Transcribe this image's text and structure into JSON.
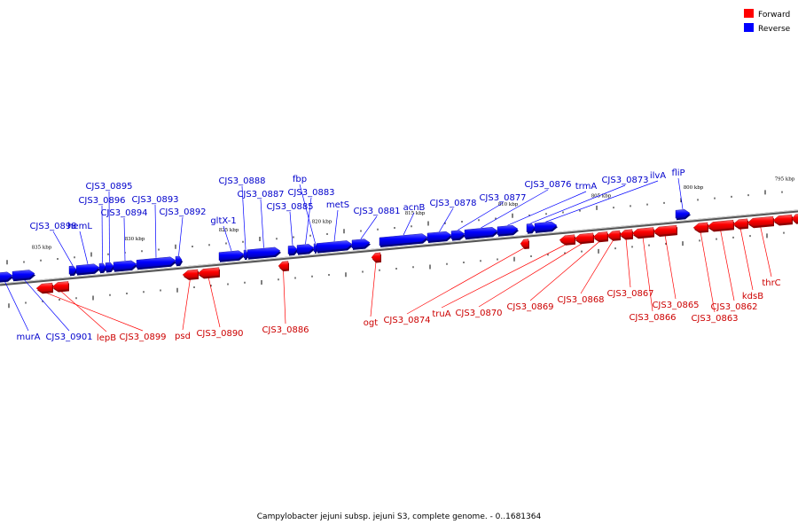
{
  "legend": {
    "forward_label": "Forward",
    "reverse_label": "Reverse",
    "forward_color": "#ff0000",
    "reverse_color": "#0000ff"
  },
  "caption": "Campylobacter jejuni subsp. jejuni S3, complete genome. - 0..1681364",
  "kbp_markers": [
    "835 kbp",
    "830 kbp",
    "825 kbp",
    "820 kbp",
    "815 kbp",
    "810 kbp",
    "805 kbp",
    "800 kbp",
    "795 kbp"
  ],
  "forward_genes": [
    "CJS3_0899",
    "lepB",
    "psd",
    "CJS3_0890",
    "CJS3_0886",
    "ogt",
    "CJS3_0874",
    "truA",
    "CJS3_0870",
    "CJS3_0869",
    "CJS3_0868",
    "CJS3_0867",
    "CJS3_0866",
    "CJS3_0865",
    "CJS3_0863",
    "CJS3_0862",
    "kdsB",
    "thrC"
  ],
  "reverse_genes": [
    "murA",
    "CJS3_0901",
    "CJS3_0898",
    "hemL",
    "CJS3_0896",
    "CJS3_0895",
    "CJS3_0894",
    "CJS3_0893",
    "CJS3_0892",
    "gltX-1",
    "CJS3_0888",
    "CJS3_0887",
    "CJS3_0885",
    "CJS3_0883",
    "fbp",
    "metS",
    "CJS3_0881",
    "acnB",
    "CJS3_0878",
    "CJS3_0877",
    "CJS3_0876",
    "trmA",
    "CJS3_0873",
    "ilvA",
    "fliP"
  ]
}
